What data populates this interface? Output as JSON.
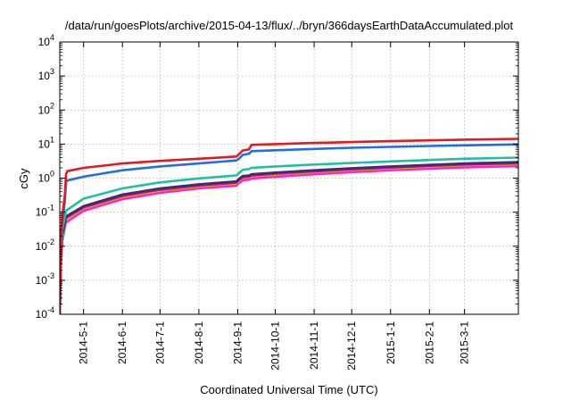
{
  "chart_data": {
    "type": "line",
    "title": "/data/run/goesPlots/archive/2015-04-13/flux/../bryn/366daysEarthDataAccumulated.plot",
    "xlabel": "Coordinated Universal Time (UTC)",
    "ylabel": "cGy",
    "y_scale": "log",
    "ylim": [
      0.0001,
      10000
    ],
    "xlim": [
      "2014-04-12",
      "2015-04-13"
    ],
    "grid": true,
    "legend": "none",
    "y_ticks": [
      {
        "value": 0.0001,
        "base": "10",
        "exp": "-4"
      },
      {
        "value": 0.001,
        "base": "10",
        "exp": "-3"
      },
      {
        "value": 0.01,
        "base": "10",
        "exp": "-2"
      },
      {
        "value": 0.1,
        "base": "10",
        "exp": "-1"
      },
      {
        "value": 1,
        "base": "10",
        "exp": "0"
      },
      {
        "value": 10,
        "base": "10",
        "exp": "1"
      },
      {
        "value": 100,
        "base": "10",
        "exp": "2"
      },
      {
        "value": 1000,
        "base": "10",
        "exp": "3"
      },
      {
        "value": 10000,
        "base": "10",
        "exp": "4"
      }
    ],
    "x_ticks": [
      {
        "value": "2014-05-01",
        "label": "2014-5-1"
      },
      {
        "value": "2014-06-01",
        "label": "2014-6-1"
      },
      {
        "value": "2014-07-01",
        "label": "2014-7-1"
      },
      {
        "value": "2014-08-01",
        "label": "2014-8-1"
      },
      {
        "value": "2014-09-01",
        "label": "2014-9-1"
      },
      {
        "value": "2014-10-01",
        "label": "2014-10-1"
      },
      {
        "value": "2014-11-01",
        "label": "2014-11-1"
      },
      {
        "value": "2014-12-01",
        "label": "2014-12-1"
      },
      {
        "value": "2015-01-01",
        "label": "2015-1-1"
      },
      {
        "value": "2015-02-01",
        "label": "2015-2-1"
      },
      {
        "value": "2015-03-01",
        "label": "2015-3-1"
      }
    ],
    "series": [
      {
        "color": "#e41a1c",
        "points": [
          [
            "2014-04-12",
            0.0001
          ],
          [
            "2014-04-13",
            0.02
          ],
          [
            "2014-04-14",
            0.08
          ],
          [
            "2014-04-16",
            0.3
          ],
          [
            "2014-04-17",
            1.3
          ],
          [
            "2014-04-18",
            1.6
          ],
          [
            "2014-05-01",
            2.0
          ],
          [
            "2014-06-01",
            2.7
          ],
          [
            "2014-07-01",
            3.2
          ],
          [
            "2014-08-01",
            3.7
          ],
          [
            "2014-08-31",
            4.3
          ],
          [
            "2014-09-02",
            5.0
          ],
          [
            "2014-09-05",
            6.5
          ],
          [
            "2014-09-10",
            7.0
          ],
          [
            "2014-09-12",
            9.5
          ],
          [
            "2014-10-01",
            10.0
          ],
          [
            "2014-11-01",
            10.8
          ],
          [
            "2014-12-01",
            11.5
          ],
          [
            "2015-01-01",
            12.2
          ],
          [
            "2015-02-01",
            12.9
          ],
          [
            "2015-03-01",
            13.5
          ],
          [
            "2015-04-13",
            14.3
          ]
        ]
      },
      {
        "color": "#1f6fe0",
        "points": [
          [
            "2014-04-12",
            0.0001
          ],
          [
            "2014-04-13",
            0.015
          ],
          [
            "2014-04-14",
            0.05
          ],
          [
            "2014-04-16",
            0.2
          ],
          [
            "2014-04-17",
            0.75
          ],
          [
            "2014-04-18",
            0.85
          ],
          [
            "2014-05-01",
            1.1
          ],
          [
            "2014-06-01",
            1.7
          ],
          [
            "2014-07-01",
            2.2
          ],
          [
            "2014-08-01",
            2.7
          ],
          [
            "2014-08-31",
            3.3
          ],
          [
            "2014-09-02",
            3.7
          ],
          [
            "2014-09-05",
            4.8
          ],
          [
            "2014-09-10",
            5.2
          ],
          [
            "2014-09-12",
            6.2
          ],
          [
            "2014-10-01",
            6.6
          ],
          [
            "2014-11-01",
            7.2
          ],
          [
            "2014-12-01",
            7.8
          ],
          [
            "2015-01-01",
            8.3
          ],
          [
            "2015-02-01",
            8.8
          ],
          [
            "2015-03-01",
            9.2
          ],
          [
            "2015-04-13",
            9.8
          ]
        ]
      },
      {
        "color": "#1fc0a0",
        "points": [
          [
            "2014-04-12",
            0.0001
          ],
          [
            "2014-04-13",
            0.008
          ],
          [
            "2014-04-14",
            0.03
          ],
          [
            "2014-04-16",
            0.07
          ],
          [
            "2014-04-17",
            0.11
          ],
          [
            "2014-05-01",
            0.25
          ],
          [
            "2014-06-01",
            0.5
          ],
          [
            "2014-07-01",
            0.75
          ],
          [
            "2014-08-01",
            0.98
          ],
          [
            "2014-08-31",
            1.2
          ],
          [
            "2014-09-02",
            1.4
          ],
          [
            "2014-09-05",
            1.75
          ],
          [
            "2014-09-10",
            1.85
          ],
          [
            "2014-09-12",
            2.0
          ],
          [
            "2014-10-01",
            2.2
          ],
          [
            "2014-11-01",
            2.5
          ],
          [
            "2014-12-01",
            2.8
          ],
          [
            "2015-01-01",
            3.1
          ],
          [
            "2015-02-01",
            3.4
          ],
          [
            "2015-03-01",
            3.7
          ],
          [
            "2015-04-13",
            4.0
          ]
        ]
      },
      {
        "color": "#3a2c7a",
        "points": [
          [
            "2014-04-12",
            0.0001
          ],
          [
            "2014-04-13",
            0.006
          ],
          [
            "2014-04-14",
            0.022
          ],
          [
            "2014-04-16",
            0.05
          ],
          [
            "2014-04-17",
            0.075
          ],
          [
            "2014-05-01",
            0.15
          ],
          [
            "2014-06-01",
            0.33
          ],
          [
            "2014-07-01",
            0.5
          ],
          [
            "2014-08-01",
            0.66
          ],
          [
            "2014-08-31",
            0.8
          ],
          [
            "2014-09-02",
            0.95
          ],
          [
            "2014-09-05",
            1.15
          ],
          [
            "2014-09-10",
            1.2
          ],
          [
            "2014-09-12",
            1.3
          ],
          [
            "2014-10-01",
            1.45
          ],
          [
            "2014-11-01",
            1.7
          ],
          [
            "2014-12-01",
            1.95
          ],
          [
            "2015-01-01",
            2.2
          ],
          [
            "2015-02-01",
            2.45
          ],
          [
            "2015-03-01",
            2.7
          ],
          [
            "2015-04-13",
            2.95
          ]
        ]
      },
      {
        "color": "#b01a6a",
        "points": [
          [
            "2014-04-12",
            0.0001
          ],
          [
            "2014-04-13",
            0.005
          ],
          [
            "2014-04-14",
            0.02
          ],
          [
            "2014-04-16",
            0.045
          ],
          [
            "2014-04-17",
            0.068
          ],
          [
            "2014-05-01",
            0.14
          ],
          [
            "2014-06-01",
            0.3
          ],
          [
            "2014-07-01",
            0.46
          ],
          [
            "2014-08-01",
            0.61
          ],
          [
            "2014-08-31",
            0.74
          ],
          [
            "2014-09-02",
            0.88
          ],
          [
            "2014-09-05",
            1.06
          ],
          [
            "2014-09-10",
            1.11
          ],
          [
            "2014-09-12",
            1.2
          ],
          [
            "2014-10-01",
            1.35
          ],
          [
            "2014-11-01",
            1.58
          ],
          [
            "2014-12-01",
            1.82
          ],
          [
            "2015-01-01",
            2.05
          ],
          [
            "2015-02-01",
            2.3
          ],
          [
            "2015-03-01",
            2.52
          ],
          [
            "2015-04-13",
            2.75
          ]
        ]
      },
      {
        "color": "#e8a000",
        "points": [
          [
            "2014-04-12",
            0.0001
          ],
          [
            "2014-04-13",
            0.004
          ],
          [
            "2014-04-14",
            0.016
          ],
          [
            "2014-04-16",
            0.04
          ],
          [
            "2014-04-17",
            0.062
          ],
          [
            "2014-05-01",
            0.13
          ],
          [
            "2014-06-01",
            0.28
          ],
          [
            "2014-07-01",
            0.43
          ],
          [
            "2014-08-01",
            0.57
          ],
          [
            "2014-08-31",
            0.7
          ],
          [
            "2014-09-02",
            0.83
          ],
          [
            "2014-09-05",
            1.0
          ],
          [
            "2014-09-10",
            1.05
          ],
          [
            "2014-09-12",
            1.13
          ],
          [
            "2014-10-01",
            1.27
          ],
          [
            "2014-11-01",
            1.5
          ],
          [
            "2014-12-01",
            1.72
          ],
          [
            "2015-01-01",
            1.95
          ],
          [
            "2015-02-01",
            2.17
          ],
          [
            "2015-03-01",
            2.38
          ],
          [
            "2015-04-13",
            2.6
          ]
        ]
      },
      {
        "color": "#ff1fd8",
        "points": [
          [
            "2014-04-12",
            0.0001
          ],
          [
            "2014-04-13",
            0.0035
          ],
          [
            "2014-04-14",
            0.014
          ],
          [
            "2014-04-16",
            0.034
          ],
          [
            "2014-04-17",
            0.05
          ],
          [
            "2014-05-01",
            0.11
          ],
          [
            "2014-06-01",
            0.24
          ],
          [
            "2014-07-01",
            0.37
          ],
          [
            "2014-08-01",
            0.5
          ],
          [
            "2014-08-31",
            0.6
          ],
          [
            "2014-09-02",
            0.72
          ],
          [
            "2014-09-05",
            0.86
          ],
          [
            "2014-09-10",
            0.9
          ],
          [
            "2014-09-12",
            0.97
          ],
          [
            "2014-10-01",
            1.1
          ],
          [
            "2014-11-01",
            1.3
          ],
          [
            "2014-12-01",
            1.5
          ],
          [
            "2015-01-01",
            1.7
          ],
          [
            "2015-02-01",
            1.9
          ],
          [
            "2015-03-01",
            2.08
          ],
          [
            "2015-04-13",
            2.25
          ]
        ]
      }
    ]
  }
}
